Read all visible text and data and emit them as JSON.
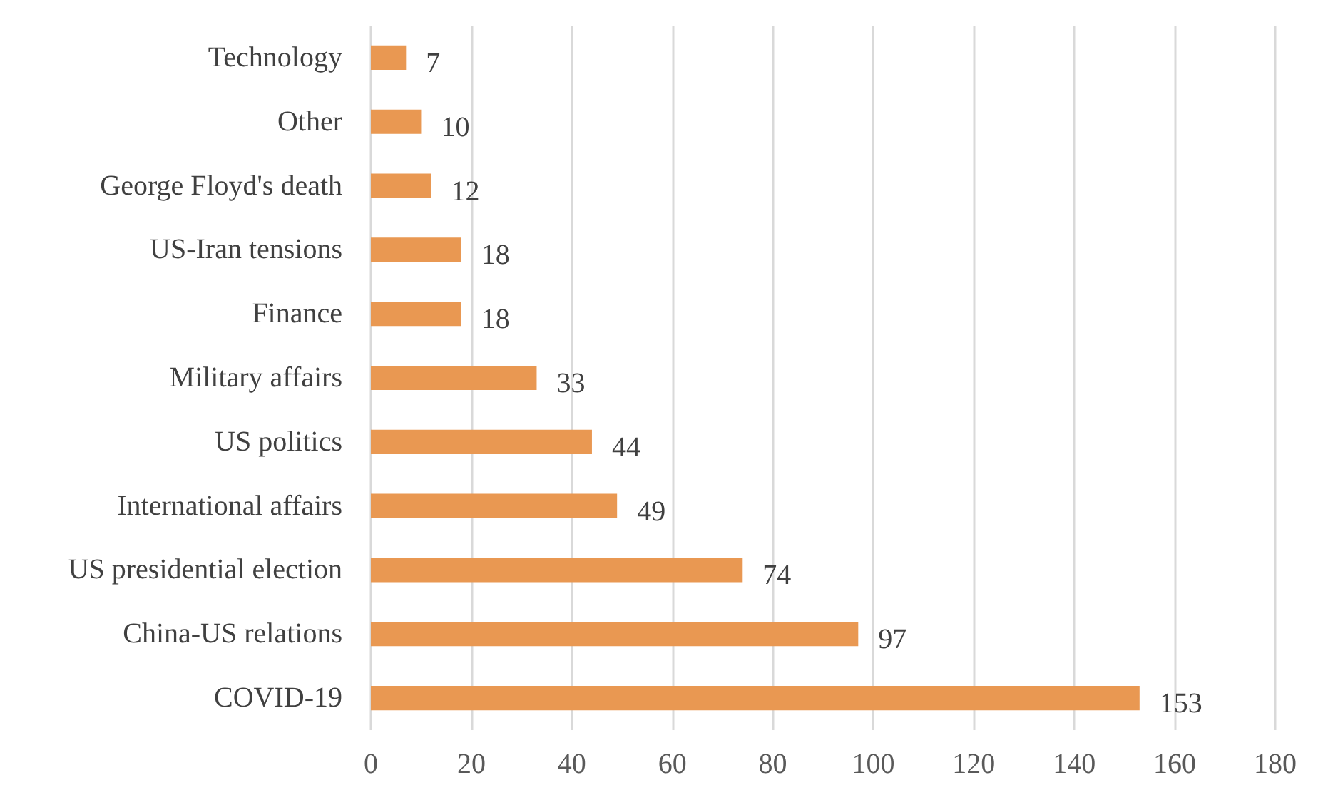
{
  "chart_data": {
    "type": "bar",
    "orientation": "horizontal",
    "categories": [
      "Technology",
      "Other",
      "George Floyd's death",
      "US-Iran tensions",
      "Finance",
      "Military affairs",
      "US politics",
      "International affairs",
      "US presidential election",
      "China-US relations",
      "COVID-19"
    ],
    "values": [
      7,
      10,
      12,
      18,
      18,
      33,
      44,
      49,
      74,
      97,
      153
    ],
    "color": "#e99852",
    "xlim": [
      0,
      180
    ],
    "xticks": [
      0,
      20,
      40,
      60,
      80,
      100,
      120,
      140,
      160,
      180
    ],
    "grid": "x",
    "data_labels": true
  }
}
